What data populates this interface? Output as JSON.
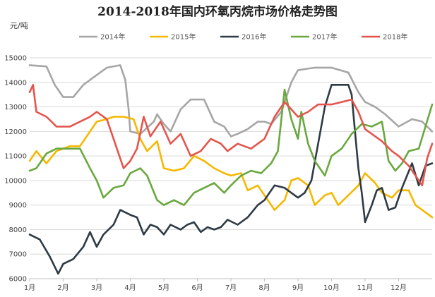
{
  "chart_data": {
    "type": "line",
    "title": "2014-2018年国内环氧丙烷市场价格走势图",
    "ylabel": "元/吨",
    "xlabel": "",
    "ylim": [
      6000,
      15000
    ],
    "yticks": [
      6000,
      7000,
      8000,
      9000,
      10000,
      11000,
      12000,
      13000,
      14000,
      15000
    ],
    "xlim": [
      1,
      13
    ],
    "xtick_labels": [
      "1月",
      "2月",
      "3月",
      "4月",
      "5月",
      "6月",
      "7月",
      "8月",
      "9月",
      "10月",
      "11月",
      "12月"
    ],
    "grid": "horizontal",
    "legend_position": "top",
    "series": [
      {
        "name": "2014年",
        "color": "#a6a6a6",
        "points": [
          [
            1.0,
            14700
          ],
          [
            1.5,
            14650
          ],
          [
            1.75,
            13900
          ],
          [
            2.0,
            13400
          ],
          [
            2.3,
            13400
          ],
          [
            2.6,
            13900
          ],
          [
            3.0,
            14300
          ],
          [
            3.3,
            14600
          ],
          [
            3.7,
            14700
          ],
          [
            3.85,
            14100
          ],
          [
            3.95,
            12900
          ],
          [
            4.0,
            12000
          ],
          [
            4.3,
            11900
          ],
          [
            4.7,
            12400
          ],
          [
            4.8,
            12700
          ],
          [
            5.0,
            12300
          ],
          [
            5.2,
            12000
          ],
          [
            5.5,
            12900
          ],
          [
            5.8,
            13300
          ],
          [
            6.2,
            13300
          ],
          [
            6.5,
            12400
          ],
          [
            6.8,
            12200
          ],
          [
            7.0,
            11800
          ],
          [
            7.2,
            11900
          ],
          [
            7.5,
            12100
          ],
          [
            7.8,
            12400
          ],
          [
            8.0,
            12400
          ],
          [
            8.2,
            12300
          ],
          [
            8.5,
            12800
          ],
          [
            8.8,
            14000
          ],
          [
            9.0,
            14500
          ],
          [
            9.5,
            14600
          ],
          [
            10.0,
            14600
          ],
          [
            10.5,
            14400
          ],
          [
            10.8,
            13600
          ],
          [
            11.0,
            13200
          ],
          [
            11.3,
            13000
          ],
          [
            11.6,
            12700
          ],
          [
            12.0,
            12200
          ],
          [
            12.4,
            12500
          ],
          [
            12.7,
            12400
          ],
          [
            13.0,
            12000
          ]
        ]
      },
      {
        "name": "2015年",
        "color": "#f5b800",
        "points": [
          [
            1.0,
            10800
          ],
          [
            1.2,
            11200
          ],
          [
            1.5,
            10700
          ],
          [
            1.8,
            11200
          ],
          [
            2.2,
            11400
          ],
          [
            2.5,
            11400
          ],
          [
            2.8,
            12000
          ],
          [
            3.0,
            12400
          ],
          [
            3.3,
            12500
          ],
          [
            3.5,
            12600
          ],
          [
            3.8,
            12600
          ],
          [
            4.1,
            12500
          ],
          [
            4.3,
            11700
          ],
          [
            4.5,
            11200
          ],
          [
            4.8,
            11600
          ],
          [
            5.0,
            10500
          ],
          [
            5.3,
            10400
          ],
          [
            5.6,
            10500
          ],
          [
            5.9,
            11000
          ],
          [
            6.2,
            10800
          ],
          [
            6.5,
            10500
          ],
          [
            6.8,
            10300
          ],
          [
            7.0,
            10200
          ],
          [
            7.3,
            10300
          ],
          [
            7.5,
            9600
          ],
          [
            7.8,
            9800
          ],
          [
            8.0,
            9400
          ],
          [
            8.3,
            8800
          ],
          [
            8.6,
            9200
          ],
          [
            8.8,
            10000
          ],
          [
            9.0,
            10100
          ],
          [
            9.3,
            9800
          ],
          [
            9.5,
            9000
          ],
          [
            9.8,
            9400
          ],
          [
            10.0,
            9500
          ],
          [
            10.2,
            9000
          ],
          [
            10.5,
            9400
          ],
          [
            10.8,
            9800
          ],
          [
            11.0,
            10300
          ],
          [
            11.3,
            9900
          ],
          [
            11.5,
            9500
          ],
          [
            11.8,
            9300
          ],
          [
            12.0,
            9600
          ],
          [
            12.3,
            9600
          ],
          [
            12.5,
            9000
          ],
          [
            12.7,
            8800
          ],
          [
            13.0,
            8500
          ]
        ]
      },
      {
        "name": "2016年",
        "color": "#2e3a44",
        "points": [
          [
            1.0,
            7800
          ],
          [
            1.3,
            7600
          ],
          [
            1.6,
            6900
          ],
          [
            1.85,
            6200
          ],
          [
            2.0,
            6600
          ],
          [
            2.3,
            6800
          ],
          [
            2.6,
            7300
          ],
          [
            2.8,
            7900
          ],
          [
            3.0,
            7300
          ],
          [
            3.2,
            7800
          ],
          [
            3.5,
            8200
          ],
          [
            3.7,
            8800
          ],
          [
            4.0,
            8600
          ],
          [
            4.2,
            8500
          ],
          [
            4.4,
            7800
          ],
          [
            4.6,
            8200
          ],
          [
            4.8,
            8100
          ],
          [
            5.0,
            7800
          ],
          [
            5.2,
            8200
          ],
          [
            5.5,
            8000
          ],
          [
            5.7,
            8200
          ],
          [
            5.9,
            8300
          ],
          [
            6.1,
            7900
          ],
          [
            6.3,
            8100
          ],
          [
            6.5,
            8000
          ],
          [
            6.7,
            8100
          ],
          [
            6.9,
            8400
          ],
          [
            7.2,
            8200
          ],
          [
            7.5,
            8500
          ],
          [
            7.8,
            9000
          ],
          [
            8.0,
            9200
          ],
          [
            8.3,
            9800
          ],
          [
            8.6,
            9700
          ],
          [
            8.8,
            9500
          ],
          [
            9.0,
            9300
          ],
          [
            9.2,
            9500
          ],
          [
            9.4,
            10000
          ],
          [
            9.6,
            11500
          ],
          [
            9.8,
            13000
          ],
          [
            10.0,
            13900
          ],
          [
            10.5,
            13900
          ],
          [
            10.6,
            13500
          ],
          [
            10.7,
            12000
          ],
          [
            10.8,
            10500
          ],
          [
            10.9,
            9500
          ],
          [
            11.0,
            8300
          ],
          [
            11.2,
            9000
          ],
          [
            11.35,
            9600
          ],
          [
            11.5,
            9700
          ],
          [
            11.7,
            8800
          ],
          [
            11.9,
            8900
          ],
          [
            12.1,
            9700
          ],
          [
            12.4,
            10700
          ],
          [
            12.6,
            9800
          ],
          [
            12.8,
            10600
          ],
          [
            13.0,
            10700
          ]
        ]
      },
      {
        "name": "2017年",
        "color": "#6aa83f",
        "points": [
          [
            1.0,
            10400
          ],
          [
            1.2,
            10500
          ],
          [
            1.5,
            11100
          ],
          [
            1.8,
            11300
          ],
          [
            2.2,
            11300
          ],
          [
            2.5,
            11300
          ],
          [
            2.8,
            10500
          ],
          [
            3.0,
            10000
          ],
          [
            3.2,
            9300
          ],
          [
            3.5,
            9700
          ],
          [
            3.8,
            9800
          ],
          [
            4.0,
            10300
          ],
          [
            4.3,
            10500
          ],
          [
            4.5,
            10200
          ],
          [
            4.8,
            9200
          ],
          [
            5.0,
            9000
          ],
          [
            5.3,
            9200
          ],
          [
            5.6,
            9000
          ],
          [
            5.9,
            9500
          ],
          [
            6.2,
            9700
          ],
          [
            6.5,
            9900
          ],
          [
            6.8,
            9500
          ],
          [
            7.0,
            9800
          ],
          [
            7.3,
            10200
          ],
          [
            7.6,
            10400
          ],
          [
            7.9,
            10300
          ],
          [
            8.2,
            10700
          ],
          [
            8.4,
            11200
          ],
          [
            8.6,
            13700
          ],
          [
            8.8,
            12500
          ],
          [
            9.0,
            11700
          ],
          [
            9.1,
            12800
          ],
          [
            9.3,
            11500
          ],
          [
            9.5,
            10800
          ],
          [
            9.8,
            10200
          ],
          [
            10.0,
            11000
          ],
          [
            10.3,
            11300
          ],
          [
            10.6,
            11900
          ],
          [
            10.9,
            12300
          ],
          [
            11.2,
            12200
          ],
          [
            11.5,
            12400
          ],
          [
            11.7,
            10800
          ],
          [
            11.9,
            10400
          ],
          [
            12.1,
            10700
          ],
          [
            12.3,
            11200
          ],
          [
            12.6,
            11300
          ],
          [
            12.8,
            12200
          ],
          [
            13.0,
            13100
          ]
        ]
      },
      {
        "name": "2018年",
        "color": "#e4554d",
        "points": [
          [
            1.0,
            13600
          ],
          [
            1.1,
            13900
          ],
          [
            1.2,
            12800
          ],
          [
            1.5,
            12600
          ],
          [
            1.8,
            12200
          ],
          [
            2.2,
            12200
          ],
          [
            2.5,
            12400
          ],
          [
            2.8,
            12600
          ],
          [
            3.0,
            12800
          ],
          [
            3.3,
            12500
          ],
          [
            3.5,
            11700
          ],
          [
            3.8,
            10500
          ],
          [
            4.0,
            10800
          ],
          [
            4.2,
            11300
          ],
          [
            4.4,
            12600
          ],
          [
            4.6,
            11800
          ],
          [
            4.9,
            12400
          ],
          [
            5.2,
            11500
          ],
          [
            5.5,
            11900
          ],
          [
            5.8,
            11000
          ],
          [
            6.1,
            11200
          ],
          [
            6.4,
            11700
          ],
          [
            6.7,
            11500
          ],
          [
            6.9,
            11200
          ],
          [
            7.2,
            11500
          ],
          [
            7.6,
            11300
          ],
          [
            8.0,
            11700
          ],
          [
            8.3,
            12600
          ],
          [
            8.6,
            13200
          ],
          [
            8.8,
            12900
          ],
          [
            9.0,
            12600
          ],
          [
            9.3,
            12800
          ],
          [
            9.6,
            13100
          ],
          [
            10.0,
            13100
          ],
          [
            10.3,
            13200
          ],
          [
            10.6,
            13300
          ],
          [
            10.8,
            12800
          ],
          [
            11.0,
            12100
          ],
          [
            11.3,
            11800
          ],
          [
            11.5,
            11600
          ],
          [
            11.8,
            11200
          ],
          [
            12.0,
            11000
          ],
          [
            12.3,
            10600
          ],
          [
            12.5,
            10200
          ],
          [
            12.7,
            9800
          ],
          [
            12.85,
            10900
          ],
          [
            13.0,
            11500
          ]
        ]
      }
    ]
  }
}
